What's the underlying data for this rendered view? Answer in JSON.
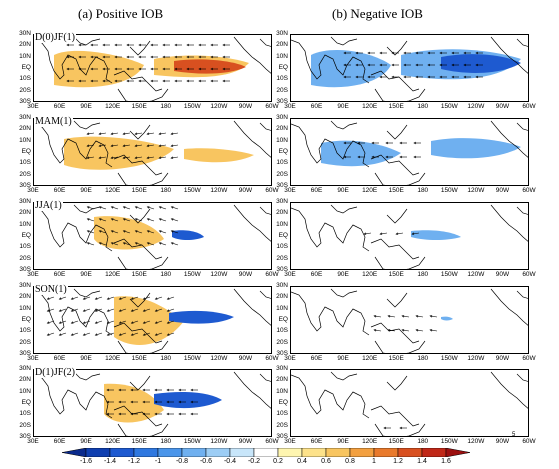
{
  "column_titles": [
    "(a) Positive IOB",
    "(b) Negative IOB"
  ],
  "row_labels": [
    "D(0)JF(1)",
    "MAM(1)",
    "JJA(1)",
    "SON(1)",
    "D(1)JF(2)"
  ],
  "lat_labels": [
    "30N",
    "20N",
    "10N",
    "EQ",
    "10S",
    "20S",
    "30S"
  ],
  "lon_labels": [
    "30E",
    "60E",
    "90E",
    "120E",
    "150E",
    "180",
    "150W",
    "120W",
    "90W",
    "60W"
  ],
  "vector_ref_label": "5",
  "colorbar": {
    "tick_labels": [
      "-1.6",
      "-1.4",
      "-1.2",
      "-1",
      "-0.8",
      "-0.6",
      "-0.4",
      "-0.2",
      "0.2",
      "0.4",
      "0.6",
      "0.8",
      "1",
      "1.2",
      "1.4",
      "1.6"
    ],
    "colors": [
      "#0a2a8c",
      "#0f3fb0",
      "#1e5ad0",
      "#2f78e0",
      "#4a95ea",
      "#6fb0f0",
      "#9ccdf5",
      "#c8e6fa",
      "#ffffff",
      "#fff6b0",
      "#fde28a",
      "#f8c560",
      "#f3a040",
      "#e97a2c",
      "#d85020",
      "#c02818",
      "#9c1010"
    ],
    "zero_band": "white"
  },
  "colors": {
    "positive_anomaly": "#f8c560",
    "strong_positive": "#d85020",
    "negative_anomaly": "#6fb0f0",
    "strong_negative": "#1e5ad0",
    "coast": "#000000",
    "vector": "#000000"
  }
}
